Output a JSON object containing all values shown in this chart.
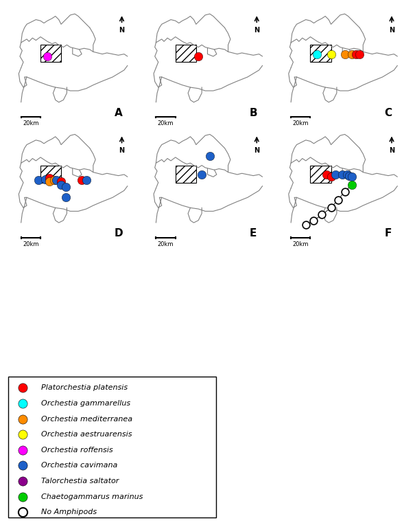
{
  "legend_entries": [
    {
      "label": "Platorchestia platensis",
      "color": "#FF0000",
      "type": "filled"
    },
    {
      "label": "Orchestia gammarellus",
      "color": "#00FFFF",
      "type": "filled"
    },
    {
      "label": "Orchestia mediterranea",
      "color": "#FF8C00",
      "type": "filled"
    },
    {
      "label": "Orchestia aestruarensis",
      "color": "#FFFF00",
      "type": "filled"
    },
    {
      "label": "Orchestia roffensis",
      "color": "#FF00FF",
      "type": "filled"
    },
    {
      "label": "Orchestia cavimana",
      "color": "#1E60C8",
      "type": "filled"
    },
    {
      "label": "Talorchestia saltator",
      "color": "#8B008B",
      "type": "filled"
    },
    {
      "label": "Chaetogammarus marinus",
      "color": "#00CC00",
      "type": "filled"
    },
    {
      "label": "No Amphipods",
      "color": "#FFFFFF",
      "type": "open"
    }
  ],
  "panel_labels": [
    "A",
    "B",
    "C",
    "D",
    "E",
    "F"
  ],
  "dot_size": 80,
  "open_dot_size": 60
}
